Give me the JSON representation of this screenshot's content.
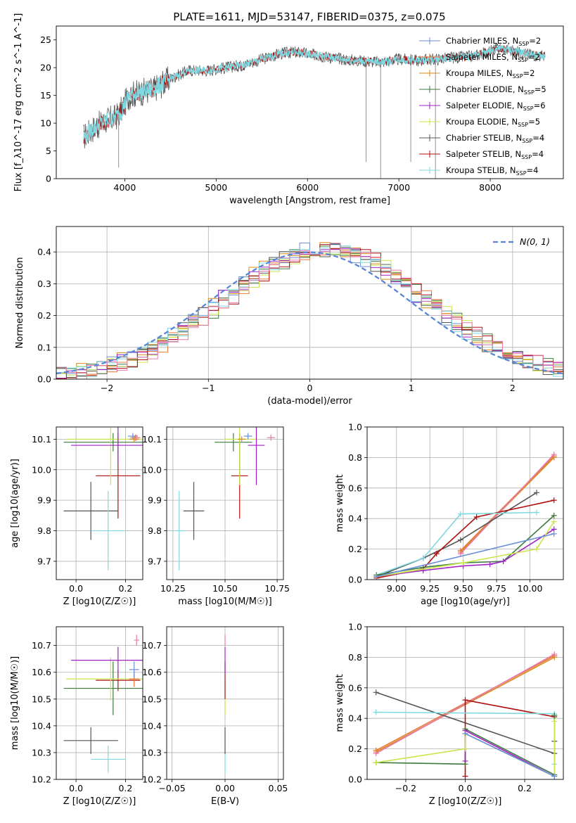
{
  "figure": {
    "title": "PLATE=1611, MJD=53147, FIBERID=0375, z=0.075"
  },
  "colors": {
    "Chabrier MILES": "#6a8fd6",
    "Salpeter MILES": "#e8793a",
    "Kroupa MILES": "#d98a1a",
    "Chabrier ELODIE": "#3d7a3d",
    "Salpeter ELODIE": "#a020c8",
    "Kroupa ELODIE": "#c9e64a",
    "Chabrier STELIB": "#555555",
    "Salpeter STELIB": "#b01010",
    "Kroupa STELIB": "#7fd8e0",
    "pink": "#e879a8"
  },
  "chart_data": [
    {
      "panel": "spectrum",
      "type": "line",
      "xlabel": "wavelength [Angstrom, rest frame]",
      "ylabel": "Flux [f_λ10^-17 erg cm^-2 s^-1 A^-1]",
      "xlim": [
        3250,
        8800
      ],
      "ylim": [
        0,
        27.5
      ],
      "xticks": [
        4000,
        5000,
        6000,
        7000,
        8000
      ],
      "yticks": [
        0,
        5,
        10,
        15,
        20,
        25
      ],
      "grid": false,
      "legend_position": "right",
      "legend": [
        {
          "name": "Chabrier MILES",
          "label": "Chabrier MILES, N",
          "sub": "SSP",
          "tail": "=2"
        },
        {
          "name": "Salpeter MILES",
          "label": "Salpeter MILES, N",
          "sub": "SSP",
          "tail": "=2"
        },
        {
          "name": "Kroupa MILES",
          "label": "Kroupa MILES, N",
          "sub": "SSP",
          "tail": "=2"
        },
        {
          "name": "Chabrier ELODIE",
          "label": "Chabrier ELODIE, N",
          "sub": "SSP",
          "tail": "=5"
        },
        {
          "name": "Salpeter ELODIE",
          "label": "Salpeter ELODIE, N",
          "sub": "SSP",
          "tail": "=6"
        },
        {
          "name": "Kroupa ELODIE",
          "label": "Kroupa ELODIE, N",
          "sub": "SSP",
          "tail": "=5"
        },
        {
          "name": "Chabrier STELIB",
          "label": "Chabrier STELIB, N",
          "sub": "SSP",
          "tail": "=4"
        },
        {
          "name": "Salpeter STELIB",
          "label": "Salpeter STELIB, N",
          "sub": "SSP",
          "tail": "=4"
        },
        {
          "name": "Kroupa STELIB",
          "label": "Kroupa STELIB, N",
          "sub": "SSP",
          "tail": "=4"
        }
      ],
      "continuum": [
        [
          3550,
          7.5
        ],
        [
          3650,
          9
        ],
        [
          3800,
          10.5
        ],
        [
          3900,
          11
        ],
        [
          3950,
          12
        ],
        [
          4050,
          15
        ],
        [
          4150,
          15.5
        ],
        [
          4300,
          16
        ],
        [
          4500,
          18
        ],
        [
          4700,
          19.5
        ],
        [
          4900,
          19.5
        ],
        [
          5100,
          20
        ],
        [
          5300,
          20.5
        ],
        [
          5500,
          21.5
        ],
        [
          5700,
          22.5
        ],
        [
          5850,
          22.8
        ],
        [
          6000,
          22.5
        ],
        [
          6200,
          22
        ],
        [
          6400,
          21.5
        ],
        [
          6600,
          21.2
        ],
        [
          6800,
          21
        ],
        [
          7000,
          21.5
        ],
        [
          7200,
          21.3
        ],
        [
          7400,
          21.5
        ],
        [
          7600,
          21.8
        ],
        [
          7800,
          22
        ],
        [
          8100,
          23.5
        ],
        [
          8400,
          22.5
        ],
        [
          8600,
          22
        ]
      ],
      "dips": [
        {
          "x": 3933,
          "y": 2
        },
        {
          "x": 6640,
          "y": 3
        },
        {
          "x": 6800,
          "y": 0
        },
        {
          "x": 7130,
          "y": 3
        },
        {
          "x": 7400,
          "y": 0
        }
      ]
    },
    {
      "panel": "residual-histogram",
      "type": "line",
      "xlabel": "(data-model)/error",
      "ylabel": "Normed distribution",
      "xlim": [
        -2.5,
        2.5
      ],
      "ylim": [
        0,
        0.48
      ],
      "xticks": [
        -2,
        -1,
        0,
        1,
        2
      ],
      "yticks": [
        0.0,
        0.1,
        0.2,
        0.3,
        0.4
      ],
      "grid": true,
      "legend_position": "top-right",
      "legend": [
        {
          "label": "N(0, 1)",
          "sub": "",
          "tail": ""
        }
      ],
      "gaussian": {
        "mean": 0,
        "sigma": 1
      },
      "bin_edges_step": 0.1
    },
    {
      "panel": "age-vs-Z",
      "type": "scatter",
      "xlabel": "Z [log10(Z/Z☉)]",
      "ylabel": "age [log10(age/yr)]",
      "xlim": [
        -0.08,
        0.27
      ],
      "ylim": [
        9.64,
        10.14
      ],
      "xticks": [
        0.0,
        0.2
      ],
      "yticks": [
        9.7,
        9.8,
        9.9,
        10.0,
        10.1
      ],
      "grid": true,
      "points": [
        {
          "series": "Chabrier STELIB",
          "x": 0.06,
          "y": 9.865,
          "xerr": 0.11,
          "yerr": 0.095
        },
        {
          "series": "Kroupa STELIB",
          "x": 0.13,
          "y": 9.8,
          "xerr": 0.07,
          "yerr": 0.13
        },
        {
          "series": "Salpeter STELIB",
          "x": 0.17,
          "y": 9.98,
          "xerr": 0.09,
          "yerr": 0.14
        },
        {
          "series": "Chabrier ELODIE",
          "x": 0.15,
          "y": 10.09,
          "xerr": 0.2,
          "yerr": 0.03
        },
        {
          "series": "Kroupa ELODIE",
          "x": 0.14,
          "y": 10.1,
          "xerr": 0.18,
          "yerr": 0.15
        },
        {
          "series": "Salpeter ELODIE",
          "x": 0.17,
          "y": 10.08,
          "xerr": 0.19,
          "yerr": 0.06
        },
        {
          "series": "Salpeter MILES",
          "x": 0.24,
          "y": 10.105,
          "xerr": 0.02,
          "yerr": 0.01
        },
        {
          "series": "Kroupa MILES",
          "x": 0.235,
          "y": 10.1,
          "xerr": 0.02,
          "yerr": 0.01
        },
        {
          "series": "Chabrier MILES",
          "x": 0.23,
          "y": 10.11,
          "xerr": 0.02,
          "yerr": 0.01
        },
        {
          "series": "pink",
          "x": 0.245,
          "y": 10.105,
          "xerr": 0.01,
          "yerr": 0.01
        }
      ]
    },
    {
      "panel": "age-vs-mass",
      "type": "scatter",
      "xlabel": "mass [log10(M/M☉)]",
      "xlim": [
        10.22,
        10.78
      ],
      "ylim": [
        9.64,
        10.14
      ],
      "xticks": [
        10.25,
        10.5,
        10.75
      ],
      "yticks": [
        9.7,
        9.8,
        9.9,
        10.0,
        10.1
      ],
      "grid": true,
      "points": [
        {
          "series": "Chabrier STELIB",
          "x": 10.35,
          "y": 9.865,
          "xerr": 0.05,
          "yerr": 0.095
        },
        {
          "series": "Kroupa STELIB",
          "x": 10.28,
          "y": 9.8,
          "xerr": 0.03,
          "yerr": 0.13
        },
        {
          "series": "Salpeter STELIB",
          "x": 10.57,
          "y": 9.98,
          "xerr": 0.04,
          "yerr": 0.14
        },
        {
          "series": "Chabrier ELODIE",
          "x": 10.54,
          "y": 10.09,
          "xerr": 0.09,
          "yerr": 0.03
        },
        {
          "series": "Kroupa ELODIE",
          "x": 10.57,
          "y": 10.1,
          "xerr": 0.08,
          "yerr": 0.15
        },
        {
          "series": "Salpeter ELODIE",
          "x": 10.65,
          "y": 10.08,
          "xerr": 0.04,
          "yerr": 0.13
        },
        {
          "series": "Chabrier MILES",
          "x": 10.61,
          "y": 10.11,
          "xerr": 0.02,
          "yerr": 0.01
        },
        {
          "series": "Kroupa MILES",
          "x": 10.58,
          "y": 10.1,
          "xerr": 0.02,
          "yerr": 0.01
        },
        {
          "series": "pink",
          "x": 10.72,
          "y": 10.105,
          "xerr": 0.02,
          "yerr": 0.01
        }
      ]
    },
    {
      "panel": "mass-weight-vs-age",
      "type": "line",
      "xlabel": "age [log10(age/yr)]",
      "ylabel": "mass weight",
      "xlim": [
        8.78,
        10.25
      ],
      "ylim": [
        0.0,
        1.0
      ],
      "xticks": [
        9.0,
        9.25,
        9.5,
        9.75,
        10.0
      ],
      "yticks": [
        0.0,
        0.2,
        0.4,
        0.6,
        0.8,
        1.0
      ],
      "grid": true,
      "series": [
        {
          "name": "Salpeter MILES",
          "x": [
            9.48,
            10.18
          ],
          "y": [
            0.19,
            0.81
          ]
        },
        {
          "name": "Kroupa MILES",
          "x": [
            9.48,
            10.18
          ],
          "y": [
            0.18,
            0.8
          ]
        },
        {
          "name": "pink",
          "x": [
            9.48,
            10.18
          ],
          "y": [
            0.17,
            0.82
          ]
        },
        {
          "name": "Chabrier STELIB",
          "x": [
            8.85,
            9.2,
            9.48,
            10.05
          ],
          "y": [
            0.02,
            0.14,
            0.26,
            0.57
          ]
        },
        {
          "name": "Salpeter STELIB",
          "x": [
            8.85,
            9.2,
            9.3,
            9.6,
            10.18
          ],
          "y": [
            0.01,
            0.07,
            0.17,
            0.41,
            0.52
          ]
        },
        {
          "name": "Kroupa STELIB",
          "x": [
            8.85,
            9.2,
            9.48,
            10.05
          ],
          "y": [
            0.03,
            0.14,
            0.43,
            0.44
          ]
        },
        {
          "name": "Chabrier ELODIE",
          "x": [
            8.85,
            9.2,
            9.5,
            9.8,
            10.18
          ],
          "y": [
            0.03,
            0.08,
            0.11,
            0.12,
            0.42
          ]
        },
        {
          "name": "Salpeter ELODIE",
          "x": [
            8.85,
            9.2,
            9.5,
            9.7,
            9.8,
            10.18
          ],
          "y": [
            0.02,
            0.06,
            0.09,
            0.1,
            0.12,
            0.33
          ]
        },
        {
          "name": "Kroupa ELODIE",
          "x": [
            8.85,
            9.5,
            10.05,
            10.18
          ],
          "y": [
            0.02,
            0.11,
            0.2,
            0.38
          ]
        },
        {
          "name": "Chabrier MILES",
          "x": [
            8.85,
            10.18
          ],
          "y": [
            0.02,
            0.3
          ]
        }
      ]
    },
    {
      "panel": "mass-vs-Z",
      "type": "scatter",
      "xlabel": "Z [log10(Z/Z☉)]",
      "ylabel": "mass [log10(M/M☉)]",
      "xlim": [
        -0.08,
        0.27
      ],
      "ylim": [
        10.2,
        10.77
      ],
      "xticks": [
        0.0,
        0.2
      ],
      "yticks": [
        10.2,
        10.3,
        10.4,
        10.5,
        10.6,
        10.7
      ],
      "grid": true,
      "points": [
        {
          "series": "Chabrier STELIB",
          "x": 0.06,
          "y": 10.345,
          "xerr": 0.11,
          "yerr": 0.05
        },
        {
          "series": "Kroupa STELIB",
          "x": 0.13,
          "y": 10.275,
          "xerr": 0.07,
          "yerr": 0.05
        },
        {
          "series": "Salpeter STELIB",
          "x": 0.17,
          "y": 10.57,
          "xerr": 0.09,
          "yerr": 0.04
        },
        {
          "series": "Chabrier ELODIE",
          "x": 0.15,
          "y": 10.54,
          "xerr": 0.2,
          "yerr": 0.1
        },
        {
          "series": "Kroupa ELODIE",
          "x": 0.14,
          "y": 10.575,
          "xerr": 0.18,
          "yerr": 0.08
        },
        {
          "series": "Salpeter ELODIE",
          "x": 0.17,
          "y": 10.645,
          "xerr": 0.19,
          "yerr": 0.05
        },
        {
          "series": "Salpeter MILES",
          "x": 0.235,
          "y": 10.575,
          "xerr": 0.02,
          "yerr": 0.03
        },
        {
          "series": "Chabrier MILES",
          "x": 0.235,
          "y": 10.61,
          "xerr": 0.02,
          "yerr": 0.03
        },
        {
          "series": "pink",
          "x": 0.245,
          "y": 10.72,
          "xerr": 0.01,
          "yerr": 0.02
        }
      ]
    },
    {
      "panel": "mass-vs-ebv",
      "type": "scatter",
      "xlabel": "E(B-V)",
      "xlim": [
        -0.055,
        0.055
      ],
      "ylim": [
        10.2,
        10.77
      ],
      "xticks": [
        -0.05,
        0.0,
        0.05
      ],
      "yticks": [
        10.2,
        10.3,
        10.4,
        10.5,
        10.6,
        10.7
      ],
      "grid": true,
      "points": [
        {
          "series": "Kroupa STELIB",
          "x": 0.0,
          "y": 10.275,
          "xerr": 0.0,
          "yerr": 0.05
        },
        {
          "series": "Chabrier STELIB",
          "x": 0.0,
          "y": 10.345,
          "xerr": 0.0,
          "yerr": 0.05
        },
        {
          "series": "Kroupa ELODIE",
          "x": 0.0,
          "y": 10.5,
          "xerr": 0.0,
          "yerr": 0.06
        },
        {
          "series": "Salpeter STELIB",
          "x": 0.0,
          "y": 10.57,
          "xerr": 0.0,
          "yerr": 0.07
        },
        {
          "series": "Salpeter ELODIE",
          "x": 0.0,
          "y": 10.645,
          "xerr": 0.0,
          "yerr": 0.05
        },
        {
          "series": "pink",
          "x": 0.0,
          "y": 10.72,
          "xerr": 0.0,
          "yerr": 0.02
        }
      ]
    },
    {
      "panel": "mass-weight-vs-Z",
      "type": "line",
      "xlabel": "Z [log10(Z/Z☉)]",
      "ylabel": "mass weight",
      "xlim": [
        -0.33,
        0.33
      ],
      "ylim": [
        0.0,
        1.0
      ],
      "xticks": [
        -0.2,
        0.0,
        0.2
      ],
      "yticks": [
        0.0,
        0.2,
        0.4,
        0.6,
        0.8,
        1.0
      ],
      "grid": true,
      "series": [
        {
          "name": "Salpeter MILES",
          "x": [
            -0.3,
            0.3
          ],
          "y": [
            0.19,
            0.81
          ]
        },
        {
          "name": "Kroupa MILES",
          "x": [
            -0.3,
            0.3
          ],
          "y": [
            0.18,
            0.8
          ]
        },
        {
          "name": "pink",
          "x": [
            -0.3,
            0.3
          ],
          "y": [
            0.17,
            0.82
          ]
        },
        {
          "name": "Chabrier STELIB",
          "x": [
            -0.3,
            0.3,
            0.3
          ],
          "y": [
            0.57,
            0.17,
            0.25
          ]
        },
        {
          "name": "Salpeter STELIB",
          "x": [
            0.0,
            0.0,
            0.3
          ],
          "y": [
            0.02,
            0.52,
            0.41
          ]
        },
        {
          "name": "Kroupa STELIB",
          "x": [
            -0.3,
            0.3,
            0.3
          ],
          "y": [
            0.44,
            0.43,
            0.1
          ]
        },
        {
          "name": "Chabrier ELODIE",
          "x": [
            -0.3,
            0.0,
            0.0,
            0.3,
            0.3
          ],
          "y": [
            0.11,
            0.1,
            0.33,
            0.03,
            0.42
          ]
        },
        {
          "name": "Salpeter ELODIE",
          "x": [
            0.0,
            0.0,
            0.3
          ],
          "y": [
            0.12,
            0.32,
            0.02
          ]
        },
        {
          "name": "Kroupa ELODIE",
          "x": [
            -0.3,
            0.0,
            0.0,
            0.3,
            0.3
          ],
          "y": [
            0.11,
            0.2,
            0.3,
            0.02,
            0.38
          ]
        },
        {
          "name": "Chabrier MILES",
          "x": [
            0.0,
            0.3
          ],
          "y": [
            0.3,
            0.02
          ]
        }
      ]
    }
  ]
}
